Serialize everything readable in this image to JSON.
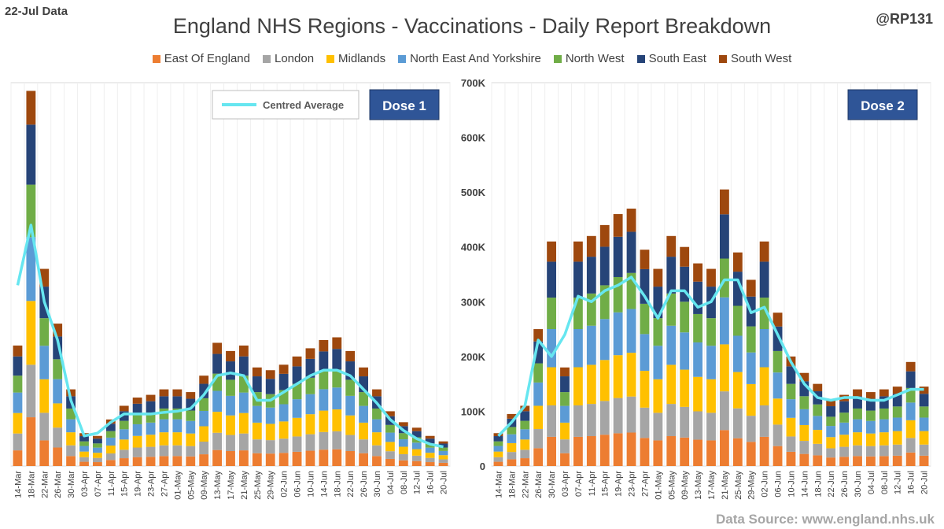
{
  "header": {
    "data_date": "22-Jul Data",
    "author": "@RP131",
    "title": "England NHS Regions - Vaccinations - Daily Report Breakdown",
    "source": "Data Source: www.england.nhs.uk"
  },
  "legend": [
    {
      "name": "East Of England",
      "color": "#ED7D31"
    },
    {
      "name": "London",
      "color": "#A5A5A5"
    },
    {
      "name": "Midlands",
      "color": "#FFC000"
    },
    {
      "name": "North East And Yorkshire",
      "color": "#5B9BD5"
    },
    {
      "name": "North West",
      "color": "#70AD47"
    },
    {
      "name": "South East",
      "color": "#264478"
    },
    {
      "name": "South West",
      "color": "#9E480E"
    }
  ],
  "chart_data": [
    {
      "type": "bar",
      "stacked": true,
      "panel_label": "Dose 1",
      "average_label": "Centred Average",
      "ylim": [
        0,
        700000
      ],
      "categories": [
        "14-Mar",
        "18-Mar",
        "22-Mar",
        "26-Mar",
        "30-Mar",
        "03-Apr",
        "07-Apr",
        "11-Apr",
        "15-Apr",
        "19-Apr",
        "23-Apr",
        "27-Apr",
        "01-May",
        "05-May",
        "09-May",
        "13-May",
        "17-May",
        "21-May",
        "25-May",
        "29-May",
        "02-Jun",
        "06-Jun",
        "10-Jun",
        "14-Jun",
        "18-Jun",
        "22-Jun",
        "26-Jun",
        "30-Jun",
        "04-Jul",
        "08-Jul",
        "12-Jul",
        "16-Jul",
        "20-Jul"
      ],
      "totals": [
        220000,
        685000,
        360000,
        260000,
        140000,
        60000,
        55000,
        85000,
        110000,
        125000,
        130000,
        140000,
        140000,
        135000,
        165000,
        225000,
        210000,
        220000,
        180000,
        175000,
        185000,
        200000,
        215000,
        230000,
        235000,
        210000,
        180000,
        140000,
        100000,
        80000,
        70000,
        55000,
        45000
      ],
      "average": [
        330000,
        440000,
        300000,
        230000,
        120000,
        55000,
        60000,
        80000,
        95000,
        95000,
        95000,
        98000,
        100000,
        105000,
        130000,
        165000,
        170000,
        165000,
        120000,
        120000,
        135000,
        150000,
        165000,
        175000,
        175000,
        165000,
        140000,
        115000,
        85000,
        65000,
        50000,
        40000,
        35000
      ]
    },
    {
      "type": "bar",
      "stacked": true,
      "panel_label": "Dose 2",
      "ylim": [
        0,
        700000
      ],
      "y_ticks": [
        "0",
        "100K",
        "200K",
        "300K",
        "400K",
        "500K",
        "600K",
        "700K"
      ],
      "categories": [
        "14-Mar",
        "18-Mar",
        "22-Mar",
        "26-Mar",
        "30-Mar",
        "03-Apr",
        "07-Apr",
        "11-Apr",
        "15-Apr",
        "19-Apr",
        "23-Apr",
        "27-Apr",
        "01-May",
        "05-May",
        "09-May",
        "13-May",
        "17-May",
        "21-May",
        "25-May",
        "29-May",
        "02-Jun",
        "06-Jun",
        "10-Jun",
        "14-Jun",
        "18-Jun",
        "22-Jun",
        "26-Jun",
        "30-Jun",
        "04-Jul",
        "08-Jul",
        "12-Jul",
        "16-Jul",
        "20-Jul"
      ],
      "totals": [
        60000,
        95000,
        110000,
        250000,
        410000,
        180000,
        410000,
        420000,
        440000,
        460000,
        470000,
        395000,
        360000,
        420000,
        400000,
        370000,
        360000,
        505000,
        390000,
        340000,
        410000,
        280000,
        200000,
        170000,
        150000,
        120000,
        130000,
        140000,
        135000,
        140000,
        145000,
        190000,
        145000
      ],
      "average": [
        55000,
        80000,
        110000,
        230000,
        200000,
        240000,
        310000,
        300000,
        320000,
        330000,
        345000,
        310000,
        270000,
        320000,
        320000,
        290000,
        300000,
        340000,
        340000,
        280000,
        290000,
        240000,
        190000,
        150000,
        125000,
        120000,
        125000,
        125000,
        120000,
        120000,
        130000,
        140000,
        140000
      ]
    }
  ]
}
